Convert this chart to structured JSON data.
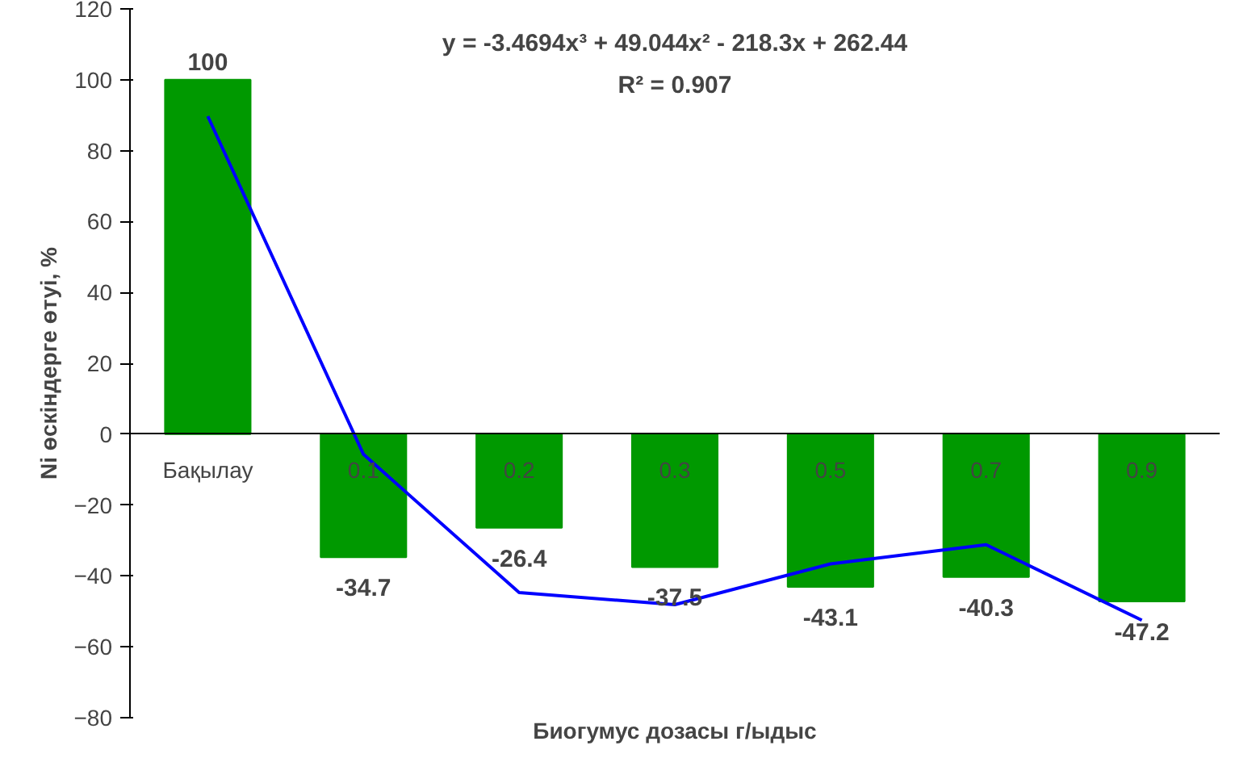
{
  "chart_data": {
    "type": "bar",
    "xlabel": "Биогумус дозасы г/ыдыс",
    "ylabel": "Ni өскіндерге өтуі, %",
    "categories": [
      "Бақылау",
      "0.1",
      "0.2",
      "0.3",
      "0.5",
      "0.7",
      "0.9"
    ],
    "series": [
      {
        "color": "#009900",
        "values": [
          100,
          -34.7,
          -26.4,
          -37.5,
          -43.1,
          -40.3,
          -47.2
        ],
        "value_labels": [
          "100",
          "-34.7",
          "-26.4",
          "-37.5",
          "-43.1",
          "-40.3",
          "-47.2"
        ]
      },
      {
        "type": "line",
        "color": "#0000ff",
        "values": [
          89.7,
          -5.7,
          -44.7,
          -48.1,
          -36.6,
          -31.2,
          -52.5
        ]
      }
    ],
    "ylim": [
      -80,
      120
    ],
    "yticks": [
      -80,
      -60,
      -40,
      -20,
      0,
      20,
      40,
      60,
      80,
      100,
      120
    ],
    "grid": false,
    "annotations": [
      "y = -3.4694x³ + 49.044x² - 218.3x + 262.44",
      "R² = 0.907"
    ]
  }
}
